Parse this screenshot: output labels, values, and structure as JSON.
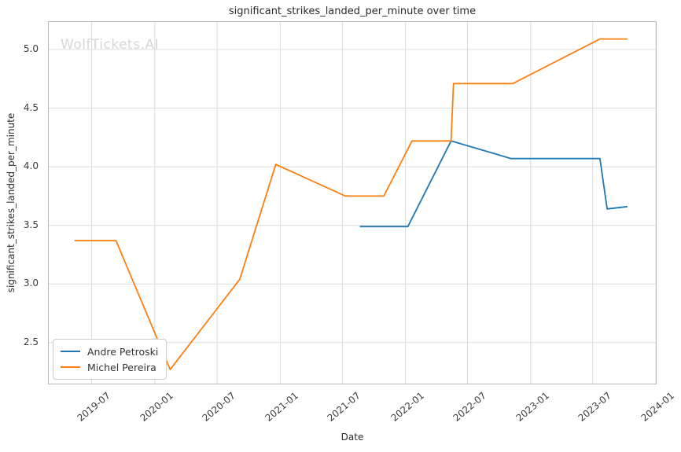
{
  "watermark": "WolfTickets.AI",
  "chart_data": {
    "type": "line",
    "title": "significant_strikes_landed_per_minute over time",
    "xlabel": "Date",
    "ylabel": "significant_strikes_landed_per_minute",
    "grid": true,
    "legend_position": "lower left",
    "xlim": [
      "2019-02-26",
      "2024-01-01"
    ],
    "ylim": [
      2.15,
      5.235
    ],
    "xticks": [
      "2019-07",
      "2020-01",
      "2020-07",
      "2021-01",
      "2021-07",
      "2022-01",
      "2022-07",
      "2023-01",
      "2023-07",
      "2024-01"
    ],
    "yticks": [
      2.5,
      3.0,
      3.5,
      4.0,
      4.5,
      5.0
    ],
    "series": [
      {
        "name": "Andre Petroski",
        "color": "#1f77b4",
        "points": [
          [
            "2021-08-21",
            3.49
          ],
          [
            "2022-01-08",
            3.49
          ],
          [
            "2022-05-14",
            4.22
          ],
          [
            "2022-11-05",
            4.07
          ],
          [
            "2023-07-22",
            4.07
          ],
          [
            "2023-08-12",
            3.64
          ],
          [
            "2023-10-10",
            3.66
          ]
        ]
      },
      {
        "name": "Michel Pereira",
        "color": "#ff7f0e",
        "points": [
          [
            "2019-05-12",
            3.37
          ],
          [
            "2019-09-10",
            3.37
          ],
          [
            "2020-02-15",
            2.27
          ],
          [
            "2020-09-05",
            3.04
          ],
          [
            "2020-12-19",
            4.02
          ],
          [
            "2021-07-10",
            3.75
          ],
          [
            "2021-10-30",
            3.75
          ],
          [
            "2022-01-20",
            4.22
          ],
          [
            "2022-05-14",
            4.22
          ],
          [
            "2022-05-21",
            4.71
          ],
          [
            "2022-11-10",
            4.71
          ],
          [
            "2023-07-22",
            5.09
          ],
          [
            "2023-10-10",
            5.09
          ]
        ]
      }
    ],
    "colors": {
      "grid": "#dcdcdc",
      "spine": "#b9b9b9",
      "text": "#2b2b2b",
      "tick_text": "#3b3b3b",
      "watermark": "#d7d7d7"
    }
  }
}
